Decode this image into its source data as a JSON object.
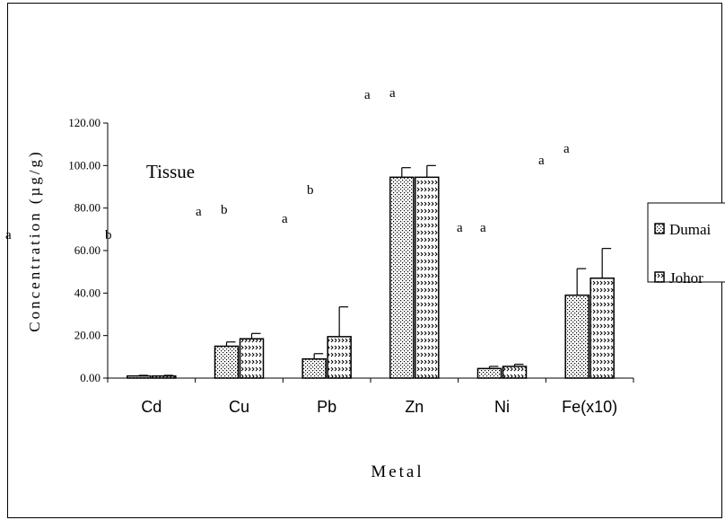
{
  "chart_data": {
    "type": "bar",
    "title": "",
    "xlabel": "Metal",
    "ylabel": "Concentration (µg/g)",
    "annotation": "Tissue",
    "categories": [
      "Cd",
      "Cu",
      "Pb",
      "Zn",
      "Ni",
      "Fe(x10)"
    ],
    "ylim": [
      0,
      120
    ],
    "yticks": [
      "0.00",
      "20.00",
      "40.00",
      "60.00",
      "80.00",
      "100.00",
      "120.00"
    ],
    "series": [
      {
        "name": "Dumai",
        "values": [
          1.0,
          15.0,
          9.0,
          94.5,
          4.5,
          39.0
        ],
        "errors": [
          0.3,
          2.0,
          2.5,
          4.5,
          1.0,
          12.5
        ]
      },
      {
        "name": "Johor",
        "values": [
          1.0,
          18.5,
          19.5,
          94.5,
          5.5,
          47.0
        ],
        "errors": [
          0.3,
          2.5,
          14.0,
          5.5,
          1.0,
          14.0
        ]
      }
    ],
    "significance_letters": [
      [
        "a",
        "b"
      ],
      [
        "a",
        "b"
      ],
      [
        "a",
        "b"
      ],
      [
        "a",
        "a"
      ],
      [
        "a",
        "a"
      ],
      [
        "a",
        "a"
      ]
    ],
    "legend_position": "right",
    "grid": false,
    "colors": {
      "axis": "#000000",
      "bar_fill": "#ffffff",
      "pattern": "#000000"
    }
  }
}
